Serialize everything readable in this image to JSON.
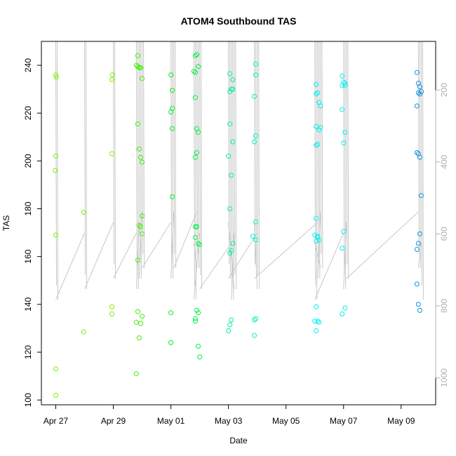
{
  "chart_data": {
    "type": "scatter",
    "title": "ATOM4 Southbound TAS",
    "xlabel": "Date",
    "ylabel": "TAS",
    "x_ticks": [
      "Apr 27",
      "Apr 29",
      "May 01",
      "May 03",
      "May 05",
      "May 07",
      "May 09"
    ],
    "x_tick_days": [
      0,
      2,
      4,
      6,
      8,
      10,
      12
    ],
    "xlim_days": [
      -0.5,
      13.2
    ],
    "ylim": [
      98,
      250
    ],
    "y_ticks": [
      100,
      120,
      140,
      160,
      180,
      200,
      220,
      240
    ],
    "y2_ticks": [
      200,
      400,
      600,
      800,
      1000
    ],
    "y2lim": [
      1075,
      65
    ],
    "grid": false,
    "series": [
      {
        "color": "#7ff000",
        "points": [
          [
            0.0,
            236
          ],
          [
            0.02,
            235
          ],
          [
            0.0,
            202
          ],
          [
            -0.02,
            196
          ],
          [
            0.0,
            169
          ],
          [
            0.0,
            113
          ],
          [
            0.0,
            102
          ],
          [
            0.97,
            178.5
          ],
          [
            0.97,
            128.5
          ],
          [
            1.97,
            236
          ],
          [
            1.95,
            234
          ],
          [
            1.95,
            203
          ],
          [
            1.95,
            139
          ],
          [
            1.95,
            136
          ]
        ]
      },
      {
        "color": "#3ff000",
        "points": [
          [
            2.8,
            240
          ],
          [
            2.85,
            239.5
          ],
          [
            2.9,
            239
          ],
          [
            2.95,
            239
          ],
          [
            2.95,
            239
          ],
          [
            2.85,
            244
          ],
          [
            2.85,
            215.5
          ],
          [
            2.9,
            205
          ],
          [
            2.95,
            201.5
          ],
          [
            3.0,
            199.5
          ],
          [
            3.0,
            234.5
          ],
          [
            3.0,
            177
          ],
          [
            2.9,
            173
          ],
          [
            2.95,
            172.5
          ],
          [
            3.0,
            169.5
          ],
          [
            2.85,
            158.5
          ],
          [
            2.85,
            137
          ],
          [
            2.8,
            132.5
          ],
          [
            2.95,
            132
          ],
          [
            3.0,
            135
          ],
          [
            2.9,
            126
          ],
          [
            2.8,
            111
          ]
        ]
      },
      {
        "color": "#00f020",
        "points": [
          [
            4.0,
            236
          ],
          [
            4.05,
            229.5
          ],
          [
            4.05,
            222
          ],
          [
            4.0,
            220.5
          ],
          [
            4.05,
            213.5
          ],
          [
            4.05,
            185
          ],
          [
            4.0,
            136.5
          ],
          [
            4.0,
            124
          ]
        ]
      },
      {
        "color": "#00f040",
        "points": [
          [
            4.85,
            244
          ],
          [
            4.9,
            244.5
          ],
          [
            4.8,
            237.5
          ],
          [
            4.85,
            237
          ],
          [
            4.95,
            239.5
          ],
          [
            4.85,
            226.5
          ],
          [
            4.9,
            213.5
          ],
          [
            4.95,
            212
          ],
          [
            4.9,
            203.5
          ],
          [
            4.85,
            201.5
          ],
          [
            4.85,
            172.5
          ],
          [
            4.9,
            172.5
          ],
          [
            4.85,
            168
          ],
          [
            4.95,
            165.5
          ],
          [
            5.0,
            165
          ],
          [
            4.85,
            134
          ],
          [
            4.9,
            137.5
          ],
          [
            4.95,
            136.5
          ],
          [
            4.85,
            133
          ],
          [
            4.95,
            122.5
          ],
          [
            5.0,
            118
          ]
        ]
      },
      {
        "color": "#00f0a0",
        "points": [
          [
            6.05,
            236.5
          ],
          [
            6.15,
            234
          ],
          [
            6.1,
            230
          ],
          [
            6.05,
            229
          ],
          [
            6.15,
            230
          ],
          [
            6.05,
            215.5
          ],
          [
            6.15,
            208
          ],
          [
            6.0,
            202
          ],
          [
            6.1,
            194
          ],
          [
            6.05,
            180
          ],
          [
            6.15,
            165.5
          ],
          [
            6.1,
            162.5
          ],
          [
            6.05,
            161.5
          ],
          [
            6.1,
            133.5
          ],
          [
            6.05,
            131.5
          ],
          [
            6.0,
            129
          ]
        ]
      },
      {
        "color": "#00f0c0",
        "points": [
          [
            6.95,
            240.5
          ],
          [
            6.95,
            236
          ],
          [
            6.9,
            227
          ],
          [
            6.95,
            210.5
          ],
          [
            6.9,
            208
          ],
          [
            6.95,
            174.5
          ],
          [
            6.85,
            168.5
          ],
          [
            6.95,
            167
          ],
          [
            6.95,
            134
          ],
          [
            6.9,
            133.5
          ],
          [
            6.9,
            127
          ]
        ]
      },
      {
        "color": "#00f0f0",
        "points": [
          [
            9.05,
            232
          ],
          [
            9.1,
            228.5
          ],
          [
            9.15,
            224.5
          ],
          [
            9.2,
            223
          ],
          [
            9.05,
            228
          ],
          [
            9.15,
            213
          ],
          [
            9.05,
            214.5
          ],
          [
            9.2,
            214
          ],
          [
            9.1,
            207
          ],
          [
            9.05,
            206.5
          ],
          [
            9.05,
            176
          ],
          [
            9.0,
            169
          ],
          [
            9.1,
            168.5
          ],
          [
            9.15,
            167
          ],
          [
            9.05,
            166.5
          ],
          [
            9.1,
            168
          ],
          [
            9.05,
            139
          ],
          [
            9.0,
            133
          ],
          [
            9.15,
            132.5
          ],
          [
            9.1,
            133
          ],
          [
            9.05,
            129
          ],
          [
            9.95,
            235.5
          ],
          [
            10.0,
            233
          ],
          [
            10.05,
            232.5
          ],
          [
            9.95,
            231.5
          ],
          [
            10.05,
            231.5
          ],
          [
            9.95,
            221.5
          ],
          [
            10.05,
            212
          ],
          [
            10.0,
            207.5
          ],
          [
            10.0,
            170.5
          ],
          [
            9.95,
            163.5
          ],
          [
            10.05,
            138.5
          ],
          [
            9.95,
            136
          ]
        ]
      },
      {
        "color": "#1090e0",
        "points": [
          [
            12.55,
            237
          ],
          [
            12.6,
            232.5
          ],
          [
            12.65,
            231
          ],
          [
            12.65,
            228
          ],
          [
            12.7,
            229
          ],
          [
            12.6,
            228.5
          ],
          [
            12.55,
            223
          ],
          [
            12.55,
            203.5
          ],
          [
            12.6,
            203
          ],
          [
            12.65,
            201.5
          ],
          [
            12.7,
            185.5
          ],
          [
            12.65,
            169.5
          ],
          [
            12.6,
            165.5
          ],
          [
            12.55,
            163
          ],
          [
            12.55,
            148.5
          ],
          [
            12.6,
            140
          ],
          [
            12.65,
            137.5
          ]
        ]
      }
    ]
  }
}
